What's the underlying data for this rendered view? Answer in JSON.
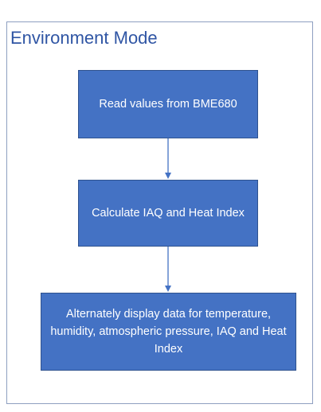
{
  "diagram": {
    "title": "Environment Mode",
    "steps": [
      {
        "label": "Read values from BME680"
      },
      {
        "label": "Calculate IAQ and Heat Index"
      },
      {
        "label": "Alternately display data for temperature, humidity,  atmospheric pressure, IAQ and Heat Index"
      }
    ],
    "colors": {
      "box_fill": "#4472c4",
      "box_border": "#2f528f",
      "title_text": "#2f55a4",
      "frame_border": "#8e9fc0",
      "arrow": "#4472c4"
    }
  }
}
